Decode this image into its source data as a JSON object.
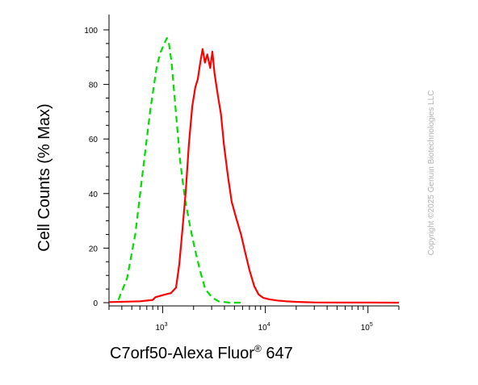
{
  "chart_data": {
    "type": "line",
    "xlabel": "C7orf50-Alexa Fluor",
    "xlabel_superscript": "®",
    "xlabel_suffix": " 647",
    "ylabel": "Cell Counts (% Max)",
    "x_scale": "log",
    "xlim": [
      300,
      200000
    ],
    "ylim": [
      0,
      100
    ],
    "y_ticks": [
      "0",
      "20",
      "40",
      "60",
      "80",
      "100"
    ],
    "x_ticks": [
      {
        "base": "10",
        "exp": "3"
      },
      {
        "base": "10",
        "exp": "4"
      },
      {
        "base": "10",
        "exp": "5"
      }
    ],
    "grid": false,
    "legend": false,
    "series": [
      {
        "color": "#00dd00",
        "dash": "dashed",
        "points": [
          [
            370,
            1
          ],
          [
            450,
            9
          ],
          [
            540,
            25
          ],
          [
            640,
            48
          ],
          [
            760,
            71
          ],
          [
            880,
            87
          ],
          [
            960,
            92
          ],
          [
            1040,
            95
          ],
          [
            1100,
            97
          ],
          [
            1150,
            95
          ],
          [
            1220,
            88
          ],
          [
            1330,
            72
          ],
          [
            1480,
            52
          ],
          [
            1650,
            38
          ],
          [
            1850,
            28
          ],
          [
            2050,
            20
          ],
          [
            2300,
            12
          ],
          [
            2600,
            5
          ],
          [
            3000,
            2
          ],
          [
            3500,
            0.5
          ],
          [
            4500,
            0
          ],
          [
            6000,
            0
          ]
        ]
      },
      {
        "color": "#ff0000",
        "dash": "solid",
        "points": [
          [
            300,
            0.2
          ],
          [
            600,
            0.5
          ],
          [
            800,
            1
          ],
          [
            850,
            2
          ],
          [
            1050,
            3
          ],
          [
            1200,
            3.5
          ],
          [
            1350,
            5.5
          ],
          [
            1450,
            14
          ],
          [
            1560,
            27
          ],
          [
            1680,
            41
          ],
          [
            1800,
            58
          ],
          [
            1940,
            72
          ],
          [
            2080,
            79
          ],
          [
            2200,
            82
          ],
          [
            2300,
            87
          ],
          [
            2450,
            93
          ],
          [
            2580,
            88
          ],
          [
            2720,
            91
          ],
          [
            2900,
            86
          ],
          [
            3050,
            92
          ],
          [
            3200,
            84
          ],
          [
            3450,
            76
          ],
          [
            3700,
            69
          ],
          [
            3950,
            58
          ],
          [
            4300,
            47
          ],
          [
            4700,
            37
          ],
          [
            5200,
            31
          ],
          [
            5800,
            25
          ],
          [
            6400,
            18
          ],
          [
            7000,
            12
          ],
          [
            7800,
            6
          ],
          [
            8600,
            3
          ],
          [
            9500,
            1.8
          ],
          [
            11000,
            1.2
          ],
          [
            13000,
            0.8
          ],
          [
            16000,
            0.5
          ],
          [
            20000,
            0.3
          ],
          [
            30000,
            0.1
          ],
          [
            50000,
            0.05
          ],
          [
            100000,
            0.05
          ],
          [
            200000,
            0
          ]
        ]
      }
    ]
  },
  "copyright": "Copyright ©2025 Genuin Biotechnologies LLC"
}
